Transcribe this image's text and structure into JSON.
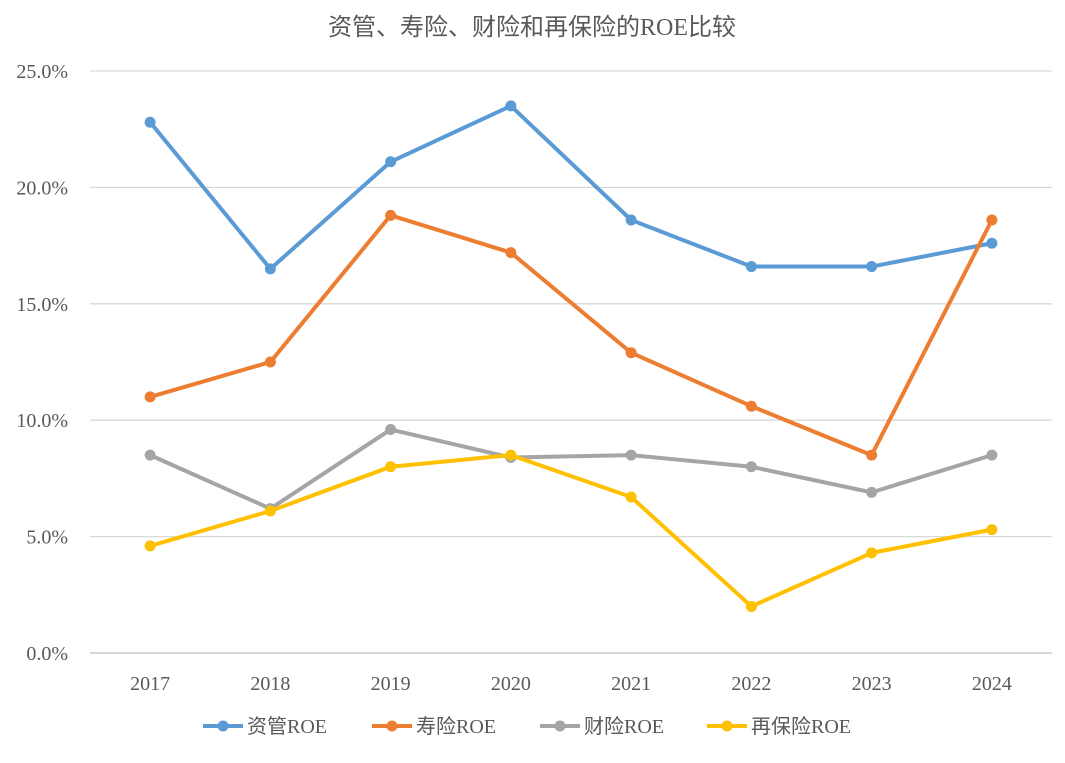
{
  "chart_data": {
    "type": "line",
    "title": "资管、寿险、财险和再保险的ROE比较",
    "xlabel": "",
    "ylabel": "",
    "categories": [
      "2017",
      "2018",
      "2019",
      "2020",
      "2021",
      "2022",
      "2023",
      "2024"
    ],
    "ylim": [
      0,
      25
    ],
    "yticks": [
      "0.0%",
      "5.0%",
      "10.0%",
      "15.0%",
      "20.0%",
      "25.0%"
    ],
    "grid": true,
    "legend_position": "bottom",
    "series": [
      {
        "name": "资管ROE",
        "color": "#5B9BD5",
        "values": [
          22.8,
          16.5,
          21.1,
          23.5,
          18.6,
          16.6,
          16.6,
          17.6
        ]
      },
      {
        "name": "寿险ROE",
        "color": "#ED7D31",
        "values": [
          11.0,
          12.5,
          18.8,
          17.2,
          12.9,
          10.6,
          8.5,
          18.6
        ]
      },
      {
        "name": "财险ROE",
        "color": "#A5A5A5",
        "values": [
          8.5,
          6.2,
          9.6,
          8.4,
          8.5,
          8.0,
          6.9,
          8.5
        ]
      },
      {
        "name": "再保险ROE",
        "color": "#FFC000",
        "values": [
          4.6,
          6.1,
          8.0,
          8.5,
          6.7,
          2.0,
          4.3,
          5.3
        ]
      }
    ]
  }
}
